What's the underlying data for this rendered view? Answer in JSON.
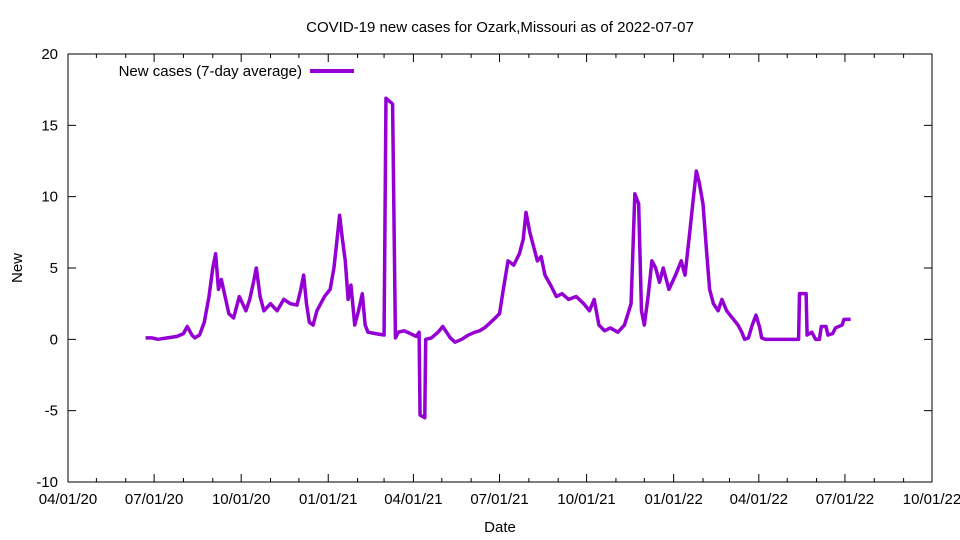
{
  "chart_data": {
    "type": "line",
    "title": "COVID-19 new cases for Ozark,Missouri as of 2022-07-07",
    "xlabel": "Date",
    "ylabel": "New",
    "ylim": [
      -10,
      20
    ],
    "yticks": [
      -10,
      -5,
      0,
      5,
      10,
      15,
      20
    ],
    "xlim": [
      "2020-04-01",
      "2022-10-01"
    ],
    "xticks": [
      {
        "date": "2020-04-01",
        "label": "04/01/20"
      },
      {
        "date": "2020-07-01",
        "label": "07/01/20"
      },
      {
        "date": "2020-10-01",
        "label": "10/01/20"
      },
      {
        "date": "2021-01-01",
        "label": "01/01/21"
      },
      {
        "date": "2021-04-01",
        "label": "04/01/21"
      },
      {
        "date": "2021-07-01",
        "label": "07/01/21"
      },
      {
        "date": "2021-10-01",
        "label": "10/01/21"
      },
      {
        "date": "2022-01-01",
        "label": "01/01/22"
      },
      {
        "date": "2022-04-01",
        "label": "04/01/22"
      },
      {
        "date": "2022-07-01",
        "label": "07/01/22"
      },
      {
        "date": "2022-10-01",
        "label": "10/01/22"
      }
    ],
    "grid": false,
    "legend_position": "top-left",
    "series": [
      {
        "name": "New cases (7-day average)",
        "color": "#9400d3",
        "points": [
          [
            "2020-06-22",
            0.1
          ],
          [
            "2020-06-29",
            0.1
          ],
          [
            "2020-07-05",
            0.0
          ],
          [
            "2020-07-15",
            0.1
          ],
          [
            "2020-07-25",
            0.2
          ],
          [
            "2020-08-01",
            0.4
          ],
          [
            "2020-08-05",
            0.9
          ],
          [
            "2020-08-10",
            0.3
          ],
          [
            "2020-08-13",
            0.1
          ],
          [
            "2020-08-18",
            0.3
          ],
          [
            "2020-08-23",
            1.2
          ],
          [
            "2020-08-28",
            3.0
          ],
          [
            "2020-09-01",
            5.0
          ],
          [
            "2020-09-04",
            6.0
          ],
          [
            "2020-09-07",
            3.5
          ],
          [
            "2020-09-10",
            4.2
          ],
          [
            "2020-09-13",
            3.3
          ],
          [
            "2020-09-18",
            1.8
          ],
          [
            "2020-09-23",
            1.5
          ],
          [
            "2020-09-29",
            3.0
          ],
          [
            "2020-10-06",
            2.0
          ],
          [
            "2020-10-10",
            2.8
          ],
          [
            "2020-10-14",
            4.0
          ],
          [
            "2020-10-17",
            5.0
          ],
          [
            "2020-10-21",
            3.0
          ],
          [
            "2020-10-25",
            2.0
          ],
          [
            "2020-11-01",
            2.5
          ],
          [
            "2020-11-08",
            2.0
          ],
          [
            "2020-11-15",
            2.8
          ],
          [
            "2020-11-22",
            2.5
          ],
          [
            "2020-11-29",
            2.4
          ],
          [
            "2020-12-03",
            3.5
          ],
          [
            "2020-12-06",
            4.5
          ],
          [
            "2020-12-09",
            2.5
          ],
          [
            "2020-12-12",
            1.2
          ],
          [
            "2020-12-16",
            1.0
          ],
          [
            "2020-12-20",
            2.0
          ],
          [
            "2020-12-28",
            3.0
          ],
          [
            "2021-01-03",
            3.5
          ],
          [
            "2021-01-07",
            5.0
          ],
          [
            "2021-01-10",
            6.8
          ],
          [
            "2021-01-13",
            8.7
          ],
          [
            "2021-01-16",
            7.0
          ],
          [
            "2021-01-19",
            5.5
          ],
          [
            "2021-01-22",
            2.8
          ],
          [
            "2021-01-25",
            3.8
          ],
          [
            "2021-01-29",
            1.0
          ],
          [
            "2021-02-02",
            2.0
          ],
          [
            "2021-02-06",
            3.2
          ],
          [
            "2021-02-09",
            1.0
          ],
          [
            "2021-02-12",
            0.5
          ],
          [
            "2021-02-20",
            0.4
          ],
          [
            "2021-03-01",
            0.3
          ],
          [
            "2021-03-03",
            16.9
          ],
          [
            "2021-03-10",
            16.5
          ],
          [
            "2021-03-13",
            0.1
          ],
          [
            "2021-03-16",
            0.5
          ],
          [
            "2021-03-22",
            0.6
          ],
          [
            "2021-03-29",
            0.4
          ],
          [
            "2021-04-04",
            0.2
          ],
          [
            "2021-04-07",
            0.5
          ],
          [
            "2021-04-08",
            -5.3
          ],
          [
            "2021-04-13",
            -5.5
          ],
          [
            "2021-04-14",
            0.0
          ],
          [
            "2021-04-20",
            0.1
          ],
          [
            "2021-04-27",
            0.5
          ],
          [
            "2021-05-02",
            0.9
          ],
          [
            "2021-05-06",
            0.5
          ],
          [
            "2021-05-10",
            0.1
          ],
          [
            "2021-05-15",
            -0.2
          ],
          [
            "2021-05-22",
            0.0
          ],
          [
            "2021-05-29",
            0.3
          ],
          [
            "2021-06-05",
            0.5
          ],
          [
            "2021-06-10",
            0.6
          ],
          [
            "2021-06-15",
            0.8
          ],
          [
            "2021-06-20",
            1.1
          ],
          [
            "2021-06-25",
            1.4
          ],
          [
            "2021-07-01",
            1.8
          ],
          [
            "2021-07-05",
            3.5
          ],
          [
            "2021-07-10",
            5.5
          ],
          [
            "2021-07-16",
            5.2
          ],
          [
            "2021-07-22",
            6.0
          ],
          [
            "2021-07-26",
            7.0
          ],
          [
            "2021-07-29",
            8.9
          ],
          [
            "2021-08-02",
            7.5
          ],
          [
            "2021-08-06",
            6.5
          ],
          [
            "2021-08-10",
            5.5
          ],
          [
            "2021-08-14",
            5.8
          ],
          [
            "2021-08-18",
            4.5
          ],
          [
            "2021-08-24",
            3.8
          ],
          [
            "2021-08-30",
            3.0
          ],
          [
            "2021-09-05",
            3.2
          ],
          [
            "2021-09-12",
            2.8
          ],
          [
            "2021-09-20",
            3.0
          ],
          [
            "2021-09-28",
            2.5
          ],
          [
            "2021-10-04",
            2.0
          ],
          [
            "2021-10-09",
            2.8
          ],
          [
            "2021-10-14",
            1.0
          ],
          [
            "2021-10-20",
            0.6
          ],
          [
            "2021-10-26",
            0.8
          ],
          [
            "2021-11-03",
            0.5
          ],
          [
            "2021-11-10",
            1.0
          ],
          [
            "2021-11-17",
            2.5
          ],
          [
            "2021-11-21",
            10.2
          ],
          [
            "2021-11-25",
            9.5
          ],
          [
            "2021-11-28",
            2.0
          ],
          [
            "2021-12-01",
            1.0
          ],
          [
            "2021-12-05",
            3.0
          ],
          [
            "2021-12-09",
            5.5
          ],
          [
            "2021-12-13",
            5.0
          ],
          [
            "2021-12-17",
            4.0
          ],
          [
            "2021-12-21",
            5.0
          ],
          [
            "2021-12-27",
            3.5
          ],
          [
            "2022-01-03",
            4.5
          ],
          [
            "2022-01-09",
            5.5
          ],
          [
            "2022-01-13",
            4.5
          ],
          [
            "2022-01-18",
            7.5
          ],
          [
            "2022-01-22",
            10.0
          ],
          [
            "2022-01-25",
            11.8
          ],
          [
            "2022-01-28",
            11.0
          ],
          [
            "2022-02-01",
            9.5
          ],
          [
            "2022-02-05",
            6.0
          ],
          [
            "2022-02-08",
            3.5
          ],
          [
            "2022-02-12",
            2.5
          ],
          [
            "2022-02-17",
            2.0
          ],
          [
            "2022-02-21",
            2.8
          ],
          [
            "2022-02-26",
            2.0
          ],
          [
            "2022-03-04",
            1.5
          ],
          [
            "2022-03-10",
            1.0
          ],
          [
            "2022-03-14",
            0.5
          ],
          [
            "2022-03-17",
            0.0
          ],
          [
            "2022-03-21",
            0.1
          ],
          [
            "2022-03-25",
            1.0
          ],
          [
            "2022-03-29",
            1.7
          ],
          [
            "2022-04-02",
            0.8
          ],
          [
            "2022-04-04",
            0.1
          ],
          [
            "2022-04-08",
            0.0
          ],
          [
            "2022-05-13",
            0.0
          ],
          [
            "2022-05-14",
            3.2
          ],
          [
            "2022-05-21",
            3.2
          ],
          [
            "2022-05-22",
            0.3
          ],
          [
            "2022-05-27",
            0.5
          ],
          [
            "2022-05-31",
            0.0
          ],
          [
            "2022-06-04",
            0.0
          ],
          [
            "2022-06-06",
            0.9
          ],
          [
            "2022-06-11",
            0.9
          ],
          [
            "2022-06-13",
            0.3
          ],
          [
            "2022-06-18",
            0.4
          ],
          [
            "2022-06-21",
            0.8
          ],
          [
            "2022-06-28",
            1.0
          ],
          [
            "2022-06-30",
            1.4
          ],
          [
            "2022-07-07",
            1.4
          ]
        ]
      }
    ]
  }
}
